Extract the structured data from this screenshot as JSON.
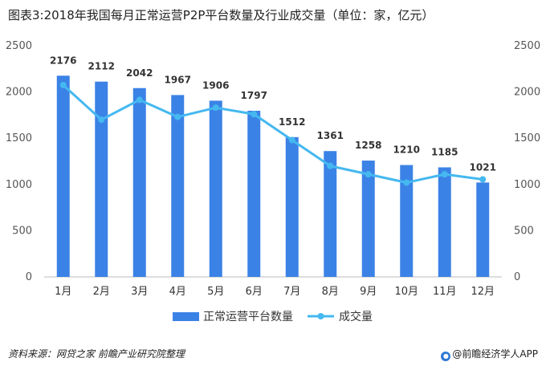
{
  "title": "图表3:2018年我国每月正常运营P2P平台数量及行业成交量（单位：家，亿元）",
  "footer": {
    "source": "资料来源：网贷之家 前瞻产业研究院整理",
    "brand": "@前瞻经济学人APP"
  },
  "colors": {
    "bar": "#3b82e6",
    "line": "#45b8f0"
  },
  "chart_data": {
    "type": "bar",
    "categories": [
      "1月",
      "2月",
      "3月",
      "4月",
      "5月",
      "6月",
      "7月",
      "8月",
      "9月",
      "10月",
      "11月",
      "12月"
    ],
    "series": [
      {
        "name": "正常运营平台数量",
        "type": "bar",
        "axis": "left",
        "values": [
          2176,
          2112,
          2042,
          1967,
          1906,
          1797,
          1512,
          1361,
          1258,
          1210,
          1185,
          1021
        ]
      },
      {
        "name": "成交量",
        "type": "line",
        "axis": "right",
        "values": [
          2075,
          1700,
          1915,
          1730,
          1830,
          1760,
          1480,
          1200,
          1110,
          1020,
          1110,
          1055
        ]
      }
    ],
    "yticks": [
      "0",
      "500",
      "1000",
      "1500",
      "2000",
      "2500"
    ],
    "ylim": [
      0,
      2500
    ],
    "y2ticks": [
      "0",
      "500",
      "1000",
      "1500",
      "2000",
      "2500"
    ],
    "y2lim": [
      0,
      2500
    ],
    "grid": false,
    "legend_position": "bottom"
  }
}
